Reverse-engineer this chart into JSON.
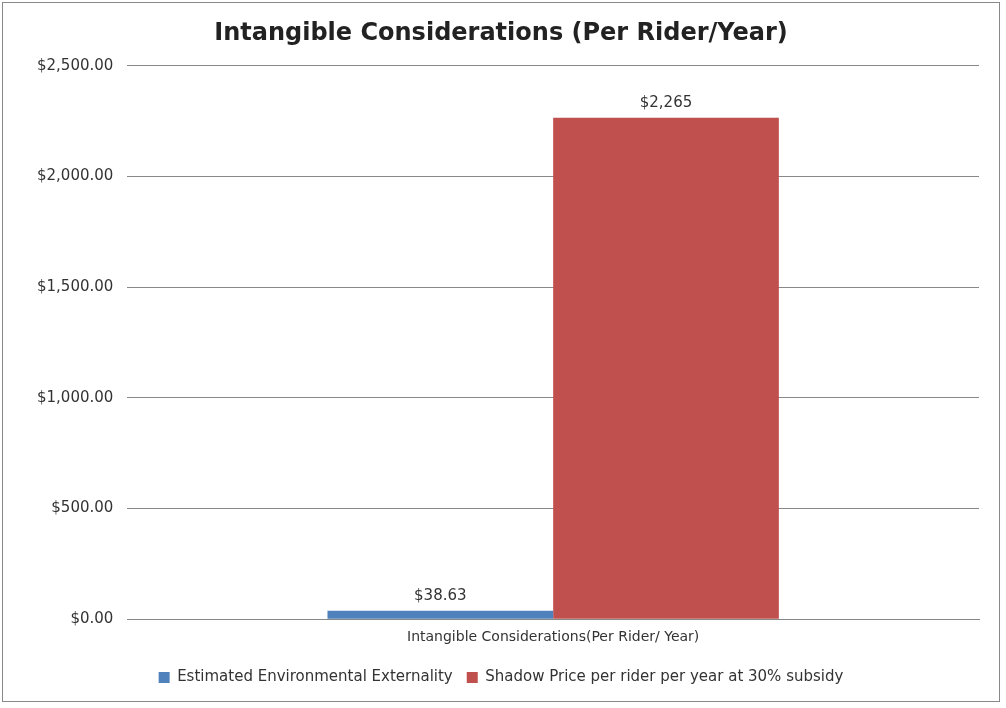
{
  "chart_data": {
    "type": "bar",
    "title": "Intangible Considerations (Per Rider/Year)",
    "categories": [
      "Intangible Considerations(Per Rider/ Year)"
    ],
    "series": [
      {
        "name": "Estimated Environmental Externality",
        "color": "#4f81bd",
        "values": [
          38.63
        ],
        "value_labels": [
          "$38.63"
        ]
      },
      {
        "name": "Shadow Price per rider per year at 30% subsidy",
        "color": "#c0504d",
        "values": [
          2265
        ],
        "value_labels": [
          "$2,265"
        ]
      }
    ],
    "ylim": [
      0,
      2500
    ],
    "yticks": [
      {
        "value": 0,
        "label": "$0.00"
      },
      {
        "value": 500,
        "label": "$500.00"
      },
      {
        "value": 1000,
        "label": "$1,000.00"
      },
      {
        "value": 1500,
        "label": "$1,500.00"
      },
      {
        "value": 2000,
        "label": "$2,000.00"
      },
      {
        "value": 2500,
        "label": "$2,500.00"
      }
    ],
    "grid": "y",
    "legend": "bottom"
  }
}
